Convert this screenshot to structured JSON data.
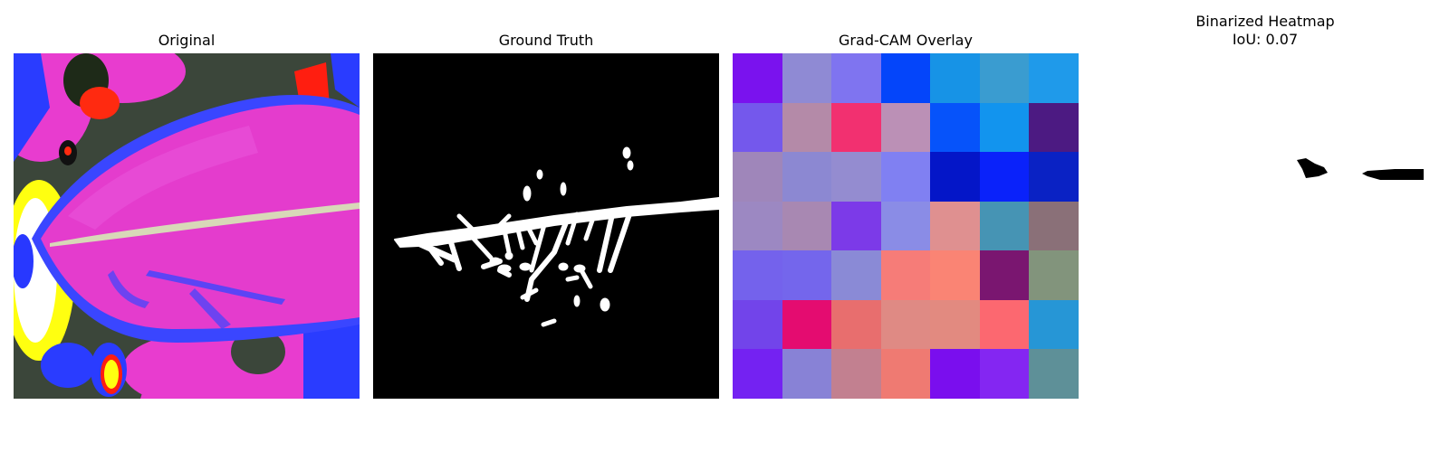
{
  "panels": {
    "original": {
      "title": "Original"
    },
    "ground_truth": {
      "title": "Ground Truth"
    },
    "gradcam": {
      "title": "Grad-CAM Overlay",
      "cells": [
        [
          "#7a12ee",
          "#8f8ad4",
          "#7f74f0",
          "#0445fa",
          "#1793e6",
          "#3a9cd0",
          "#1f9aea"
        ],
        [
          "#7458ec",
          "#b48aa8",
          "#f23070",
          "#bb90b6",
          "#0653fa",
          "#1294ee",
          "#4c1a82"
        ],
        [
          "#9f86ba",
          "#8c88d2",
          "#948cd0",
          "#8080f2",
          "#0416c8",
          "#0a22fa",
          "#0a22c4"
        ],
        [
          "#9c88c2",
          "#a888b2",
          "#7c3ae8",
          "#8a8ce6",
          "#df9090",
          "#4694b4",
          "#8a7078"
        ],
        [
          "#7462ec",
          "#7466ec",
          "#8a8ad6",
          "#f67c78",
          "#fa8474",
          "#7a1670",
          "#82947c"
        ],
        [
          "#7244ea",
          "#e40c70",
          "#e86e6e",
          "#df8a84",
          "#e28a80",
          "#fc6870",
          "#2696d6"
        ],
        [
          "#7422f2",
          "#8882d6",
          "#c28090",
          "#ef7a72",
          "#7a0eee",
          "#8426f2",
          "#5e9098"
        ]
      ]
    },
    "binarized": {
      "title": "Binarized Heatmap",
      "subtitle": "IoU: 0.07"
    }
  }
}
